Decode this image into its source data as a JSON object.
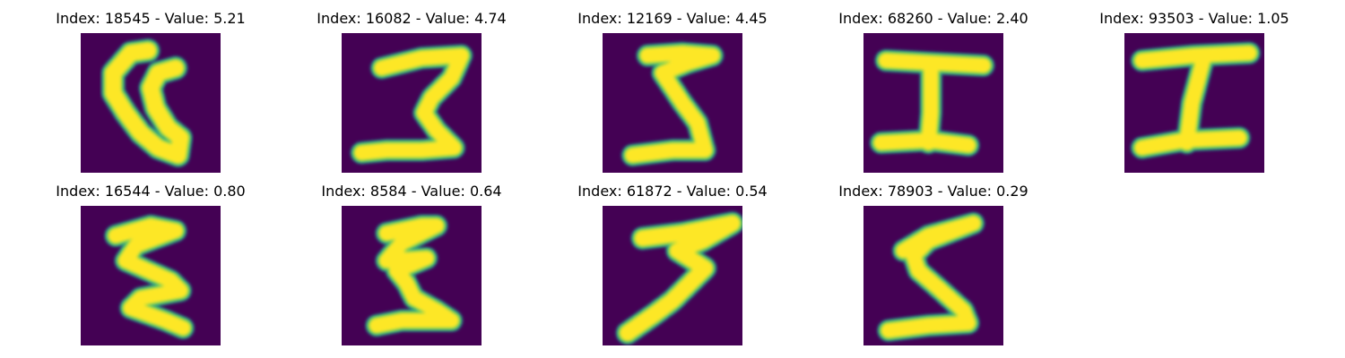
{
  "colors": {
    "background": "#440154",
    "foreground": "#fde725",
    "edge_outer": "#21918c",
    "edge_inner": "#5ec962"
  },
  "panels": [
    {
      "title": "Index: 18545 - Value: 5.21",
      "glyph": "loop-c"
    },
    {
      "title": "Index: 16082 - Value: 4.74",
      "glyph": "z-shape"
    },
    {
      "title": "Index: 12169 - Value: 4.45",
      "glyph": "z-shape-narrow"
    },
    {
      "title": "Index: 68260 - Value: 2.40",
      "glyph": "i-beam"
    },
    {
      "title": "Index: 93503 - Value: 1.05",
      "glyph": "i-beam-slanted"
    },
    {
      "title": "Index: 16544 - Value: 0.80",
      "glyph": "zigzag"
    },
    {
      "title": "Index: 8584 - Value: 0.64",
      "glyph": "zigzag-narrow"
    },
    {
      "title": "Index: 61872 - Value: 0.54",
      "glyph": "three-shape"
    },
    {
      "title": "Index: 78903 - Value: 0.29",
      "glyph": "z-shape-wide"
    }
  ]
}
